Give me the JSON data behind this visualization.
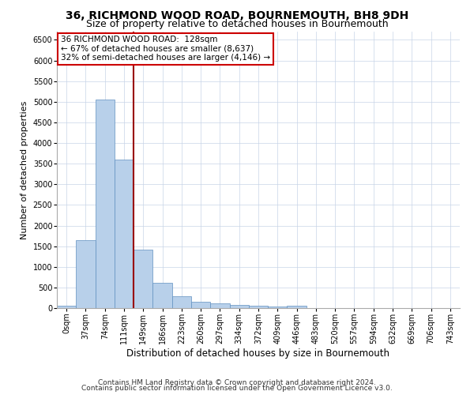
{
  "title1": "36, RICHMOND WOOD ROAD, BOURNEMOUTH, BH8 9DH",
  "title2": "Size of property relative to detached houses in Bournemouth",
  "xlabel": "Distribution of detached houses by size in Bournemouth",
  "ylabel": "Number of detached properties",
  "bar_labels": [
    "0sqm",
    "37sqm",
    "74sqm",
    "111sqm",
    "149sqm",
    "186sqm",
    "223sqm",
    "260sqm",
    "297sqm",
    "334sqm",
    "372sqm",
    "409sqm",
    "446sqm",
    "483sqm",
    "520sqm",
    "557sqm",
    "594sqm",
    "632sqm",
    "669sqm",
    "706sqm",
    "743sqm"
  ],
  "bar_values": [
    65,
    1650,
    5060,
    3600,
    1410,
    610,
    285,
    145,
    110,
    75,
    55,
    30,
    60,
    0,
    0,
    0,
    0,
    0,
    0,
    0,
    0
  ],
  "bar_color": "#b8d0ea",
  "bar_edge_color": "#6090c0",
  "grid_color": "#c8d4e8",
  "annotation_line1": "36 RICHMOND WOOD ROAD:  128sqm",
  "annotation_line2": "← 67% of detached houses are smaller (8,637)",
  "annotation_line3": "32% of semi-detached houses are larger (4,146) →",
  "vline_color": "#990000",
  "ylim": [
    0,
    6700
  ],
  "yticks": [
    0,
    500,
    1000,
    1500,
    2000,
    2500,
    3000,
    3500,
    4000,
    4500,
    5000,
    5500,
    6000,
    6500
  ],
  "footer1": "Contains HM Land Registry data © Crown copyright and database right 2024.",
  "footer2": "Contains public sector information licensed under the Open Government Licence v3.0.",
  "title1_fontsize": 10,
  "title2_fontsize": 9,
  "xlabel_fontsize": 8.5,
  "ylabel_fontsize": 8,
  "tick_fontsize": 7,
  "footer_fontsize": 6.5,
  "annotation_fontsize": 7.5
}
